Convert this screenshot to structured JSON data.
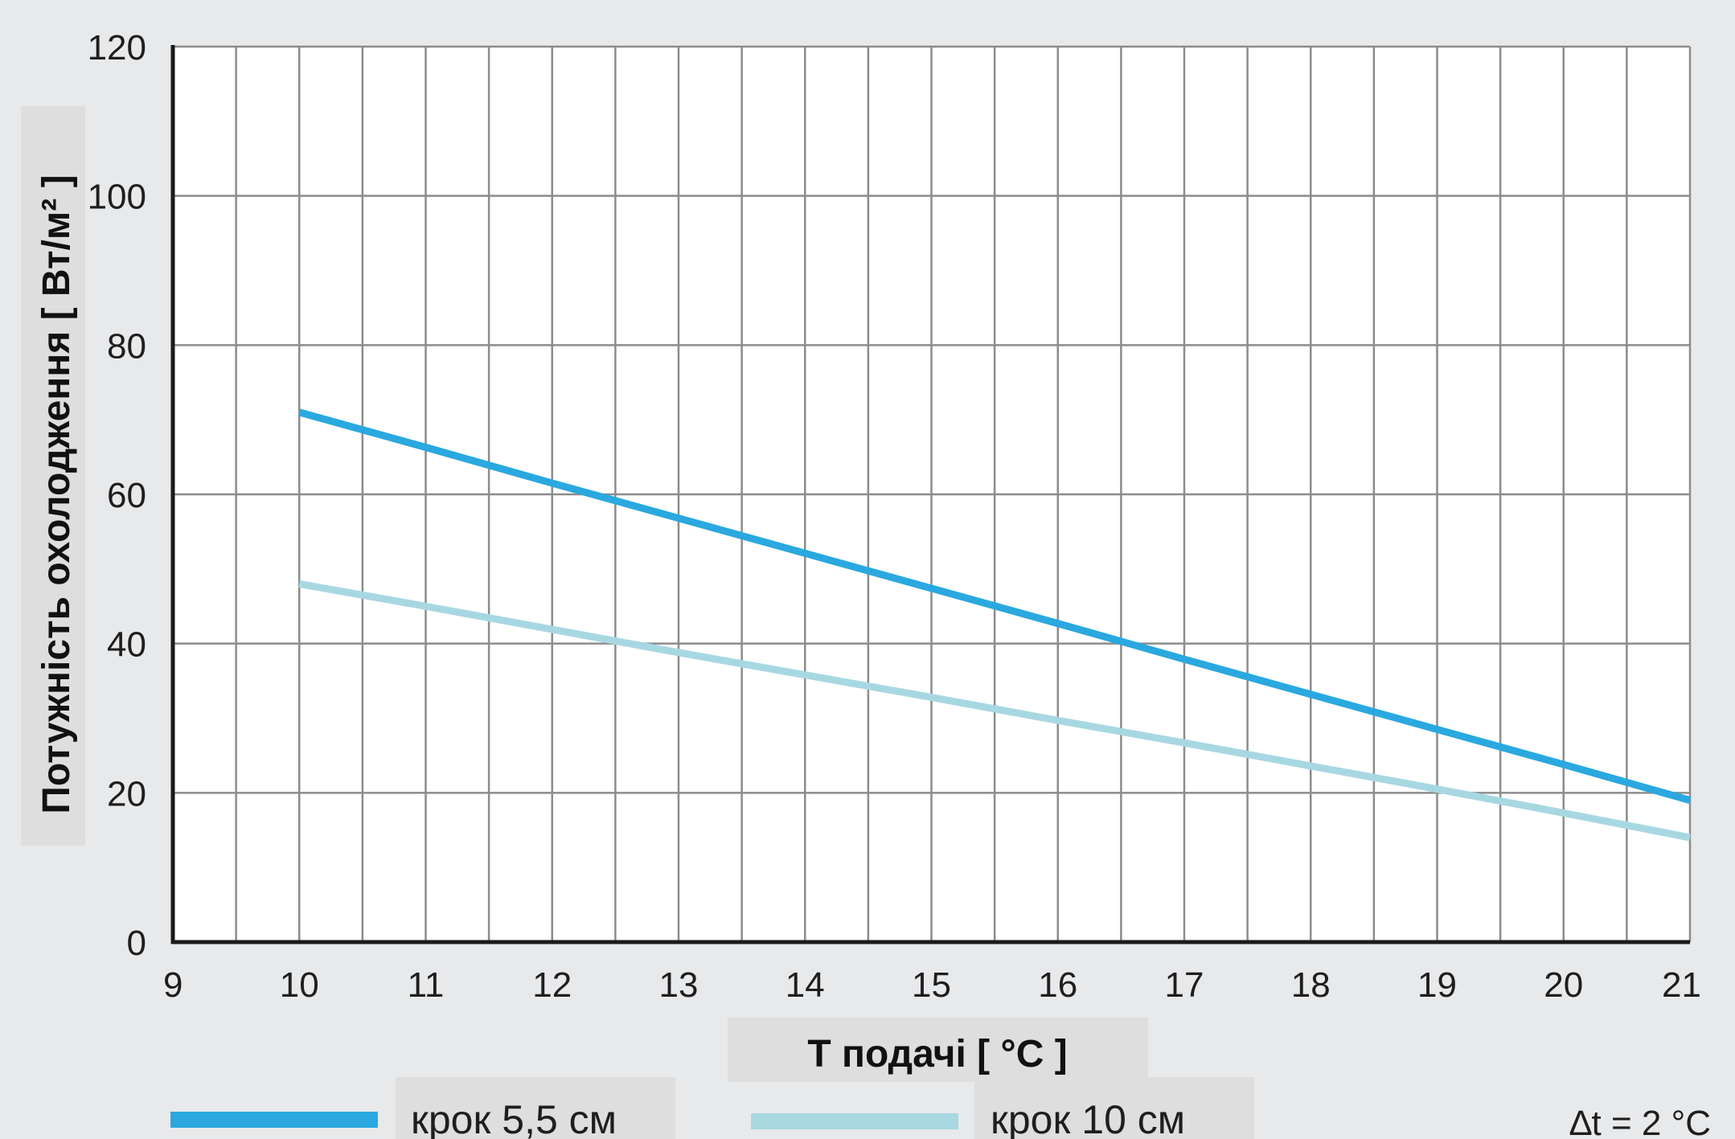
{
  "chart_data": {
    "type": "line",
    "xlabel": "Т подачі [ °С ]",
    "ylabel": "Потужність охолодження [ Вт/м² ]",
    "xlim": [
      9,
      21
    ],
    "ylim": [
      0,
      120
    ],
    "x_ticks": [
      "9",
      "10",
      "11",
      "12",
      "13",
      "14",
      "15",
      "16",
      "17",
      "18",
      "19",
      "20",
      "21"
    ],
    "y_ticks": [
      "0",
      "20",
      "40",
      "60",
      "80",
      "100",
      "120"
    ],
    "grid": true,
    "legend_position": "bottom",
    "note": "∆t = 2 °C",
    "series": [
      {
        "name": "крок 5,5 см",
        "color": "#2aa8df",
        "x": [
          10,
          11,
          12,
          13,
          14,
          15,
          16,
          17,
          18,
          19,
          20,
          21
        ],
        "y": [
          71,
          66.3,
          61.5,
          56.8,
          52.1,
          47.4,
          42.7,
          37.9,
          33.2,
          28.5,
          23.8,
          19
        ]
      },
      {
        "name": "крок 10 см",
        "color": "#a7d8e2",
        "x": [
          10,
          11,
          12,
          13,
          14,
          15,
          16,
          17,
          18,
          19,
          20,
          21
        ],
        "y": [
          48,
          45,
          41.9,
          38.8,
          35.8,
          32.8,
          29.7,
          26.7,
          23.6,
          20.5,
          17.3,
          14
        ]
      }
    ]
  }
}
